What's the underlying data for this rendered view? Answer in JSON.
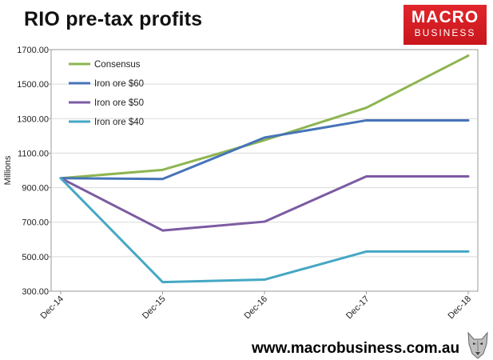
{
  "header": {
    "title": "RIO pre-tax profits"
  },
  "logo": {
    "line1": "MACRO",
    "line2": "BUSINESS"
  },
  "footer": {
    "url": "www.macrobusiness.com.au"
  },
  "chart_data": {
    "type": "line",
    "title": "RIO pre-tax profits",
    "xlabel": "",
    "ylabel": "Millions",
    "categories": [
      "Dec-14",
      "Dec-15",
      "Dec-16",
      "Dec-17",
      "Dec-18"
    ],
    "ylim": [
      300,
      1700
    ],
    "yticks": [
      "1700.00",
      "1500.00",
      "1300.00",
      "1100.00",
      "900.00",
      "700.00",
      "500.00",
      "300.00"
    ],
    "ytick_values": [
      1700,
      1500,
      1300,
      1100,
      900,
      700,
      500,
      300
    ],
    "grid": true,
    "legend_position": "top-left",
    "series": [
      {
        "name": "Consensus",
        "color": "#8db551",
        "values": [
          955,
          1003,
          1175,
          1363,
          1665
        ]
      },
      {
        "name": "Iron ore $60",
        "color": "#4674b8",
        "values": [
          955,
          950,
          1190,
          1290,
          1290
        ]
      },
      {
        "name": "Iron ore $50",
        "color": "#7c5ba3",
        "values": [
          955,
          652,
          703,
          965,
          965
        ]
      },
      {
        "name": "Iron ore $40",
        "color": "#45a7c4",
        "values": [
          955,
          353,
          367,
          530,
          530
        ]
      }
    ]
  }
}
